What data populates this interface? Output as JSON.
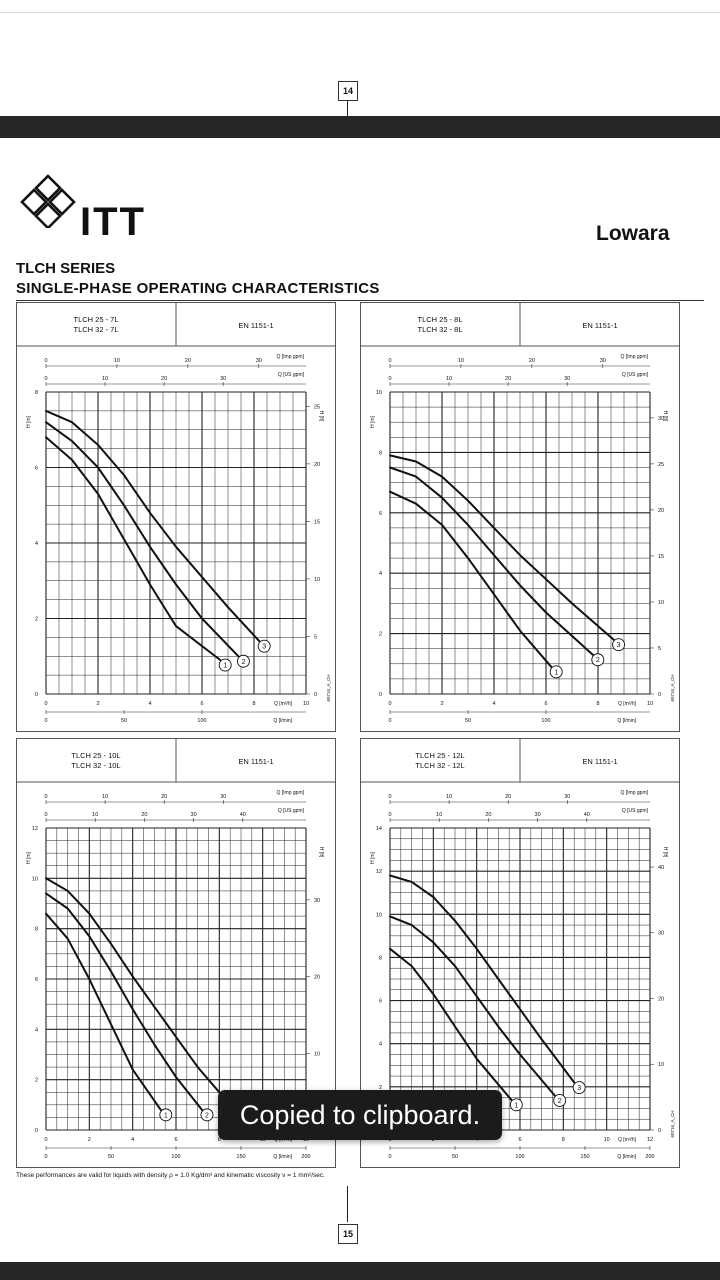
{
  "document": {
    "page_top": "14",
    "page_bottom": "15",
    "brand": "ITT",
    "brand_right": "Lowara",
    "series": "TLCH SERIES",
    "subtitle": "SINGLE-PHASE OPERATING CHARACTERISTICS",
    "footnote": "These performances are valid for liquids with density ρ = 1.0 Kg/dm³ and kinematic viscosity ν = 1 mm²/sec."
  },
  "toast": {
    "text": "Copied to clipboard."
  },
  "chart_data": [
    {
      "type": "line",
      "model_line1": "TLCH 25 - 7L",
      "model_line2": "TLCH 32 - 7L",
      "standard": "EN 1151-1",
      "xlabel": "Q [m³/h]",
      "xlabel2": "Q [l/min]",
      "top_label1": "Q [Imp gpm]",
      "top_label2": "Q [US gpm]",
      "ylabel": "H [m]",
      "ylabel_right": "H [ft]",
      "code": "60716_A_CH",
      "xlim": [
        0,
        10
      ],
      "ylim": [
        0,
        8
      ],
      "x_ticks": [
        "0",
        "2",
        "4",
        "6",
        "8",
        "10"
      ],
      "y_ticks": [
        "0",
        "2",
        "4",
        "6",
        "8"
      ],
      "lmin_ticks": [
        "0",
        "50",
        "100"
      ],
      "lmin_values": [
        0,
        50,
        100
      ],
      "imp_ticks": [
        "0",
        "10",
        "20",
        "30"
      ],
      "imp_values": [
        0,
        10,
        20,
        30
      ],
      "us_ticks": [
        "0",
        "10",
        "20",
        "30"
      ],
      "us_values": [
        0,
        10,
        20,
        30
      ],
      "ft_ticks": [
        "0",
        "5",
        "10",
        "15",
        "20",
        "25"
      ],
      "ft_values": [
        0,
        5,
        10,
        15,
        20,
        25
      ],
      "series": [
        {
          "name": "1",
          "x": [
            0,
            1,
            2,
            3,
            4,
            5,
            6.7
          ],
          "y": [
            6.8,
            6.2,
            5.3,
            4.1,
            2.9,
            1.8,
            0.9
          ]
        },
        {
          "name": "2",
          "x": [
            0,
            1,
            2,
            3,
            4,
            5,
            6,
            7.4
          ],
          "y": [
            7.2,
            6.7,
            6.0,
            5.0,
            3.9,
            2.9,
            2.0,
            1.0
          ]
        },
        {
          "name": "3",
          "x": [
            0,
            1,
            2,
            3,
            4,
            5,
            6,
            7,
            8.2
          ],
          "y": [
            7.5,
            7.2,
            6.6,
            5.8,
            4.8,
            3.9,
            3.1,
            2.3,
            1.4
          ]
        }
      ]
    },
    {
      "type": "line",
      "model_line1": "TLCH 25 - 8L",
      "model_line2": "TLCH 32 - 8L",
      "standard": "EN 1151-1",
      "xlabel": "Q [m³/h]",
      "xlabel2": "Q [l/min]",
      "top_label1": "Q [Imp gpm]",
      "top_label2": "Q [US gpm]",
      "ylabel": "H [m]",
      "ylabel_right": "H [ft]",
      "code": "60716_A_CH",
      "xlim": [
        0,
        10
      ],
      "ylim": [
        0,
        10
      ],
      "x_ticks": [
        "0",
        "2",
        "4",
        "6",
        "8",
        "10"
      ],
      "y_ticks": [
        "0",
        "2",
        "4",
        "6",
        "8",
        "10"
      ],
      "lmin_ticks": [
        "0",
        "50",
        "100"
      ],
      "lmin_values": [
        0,
        50,
        100
      ],
      "imp_ticks": [
        "0",
        "10",
        "20",
        "30"
      ],
      "imp_values": [
        0,
        10,
        20,
        30
      ],
      "us_ticks": [
        "0",
        "10",
        "20",
        "30"
      ],
      "us_values": [
        0,
        10,
        20,
        30
      ],
      "ft_ticks": [
        "0",
        "5",
        "10",
        "15",
        "20",
        "25",
        "30"
      ],
      "ft_values": [
        0,
        5,
        10,
        15,
        20,
        25,
        30
      ],
      "series": [
        {
          "name": "1",
          "x": [
            0,
            1,
            2,
            3,
            4,
            5,
            6.2
          ],
          "y": [
            6.7,
            6.3,
            5.6,
            4.5,
            3.3,
            2.1,
            0.9
          ]
        },
        {
          "name": "2",
          "x": [
            0,
            1,
            2,
            3,
            4,
            5,
            6,
            7.8
          ],
          "y": [
            7.5,
            7.2,
            6.5,
            5.6,
            4.6,
            3.6,
            2.7,
            1.3
          ]
        },
        {
          "name": "3",
          "x": [
            0,
            1,
            2,
            3,
            4,
            5,
            6,
            7,
            8.6
          ],
          "y": [
            7.9,
            7.7,
            7.2,
            6.4,
            5.5,
            4.6,
            3.8,
            3.0,
            1.8
          ]
        }
      ]
    },
    {
      "type": "line",
      "model_line1": "TLCH 25 - 10L",
      "model_line2": "TLCH 32 - 10L",
      "standard": "EN 1151-1",
      "xlabel": "Q [m³/h]",
      "xlabel2": "Q [l/min]",
      "top_label1": "Q [Imp gpm]",
      "top_label2": "Q [US gpm]",
      "ylabel": "H [m]",
      "ylabel_right": "H [ft]",
      "code": "60716_A_CH",
      "xlim": [
        0,
        12
      ],
      "ylim": [
        0,
        12
      ],
      "x_ticks": [
        "0",
        "2",
        "4",
        "6",
        "8",
        "10",
        "12"
      ],
      "y_ticks": [
        "0",
        "2",
        "4",
        "6",
        "8",
        "10",
        "12"
      ],
      "lmin_ticks": [
        "0",
        "50",
        "100",
        "150",
        "200"
      ],
      "lmin_values": [
        0,
        50,
        100,
        150,
        200
      ],
      "imp_ticks": [
        "0",
        "10",
        "20",
        "30"
      ],
      "imp_values": [
        0,
        10,
        20,
        30
      ],
      "us_ticks": [
        "0",
        "10",
        "20",
        "30",
        "40"
      ],
      "us_values": [
        0,
        10,
        20,
        30,
        40
      ],
      "ft_ticks": [
        "0",
        "10",
        "20",
        "30"
      ],
      "ft_values": [
        0,
        10,
        20,
        30
      ],
      "series": [
        {
          "name": "1",
          "x": [
            0,
            1,
            2,
            3,
            4,
            5.3
          ],
          "y": [
            8.6,
            7.6,
            6.0,
            4.2,
            2.4,
            0.8
          ]
        },
        {
          "name": "2",
          "x": [
            0,
            1,
            2,
            3,
            4,
            5,
            6,
            7.2
          ],
          "y": [
            9.4,
            8.8,
            7.7,
            6.3,
            4.8,
            3.4,
            2.1,
            0.8
          ]
        },
        {
          "name": "3",
          "x": [
            0,
            1,
            2,
            3,
            4,
            5,
            6,
            7,
            8.3
          ],
          "y": [
            10.0,
            9.5,
            8.6,
            7.4,
            6.1,
            4.9,
            3.7,
            2.5,
            1.2
          ]
        }
      ]
    },
    {
      "type": "line",
      "model_line1": "TLCH 25 - 12L",
      "model_line2": "TLCH 32 - 12L",
      "standard": "EN 1151-1",
      "xlabel": "Q [m³/h]",
      "xlabel2": "Q [l/min]",
      "top_label1": "Q [Imp gpm]",
      "top_label2": "Q [US gpm]",
      "ylabel": "H [m]",
      "ylabel_right": "H [ft]",
      "code": "60716_A_CH",
      "xlim": [
        0,
        12
      ],
      "ylim": [
        0,
        14
      ],
      "x_ticks": [
        "0",
        "2",
        "4",
        "6",
        "8",
        "10",
        "12"
      ],
      "y_ticks": [
        "0",
        "2",
        "4",
        "6",
        "8",
        "10",
        "12",
        "14"
      ],
      "lmin_ticks": [
        "0",
        "50",
        "100",
        "150",
        "200"
      ],
      "lmin_values": [
        0,
        50,
        100,
        150,
        200
      ],
      "imp_ticks": [
        "0",
        "10",
        "20",
        "30"
      ],
      "imp_values": [
        0,
        10,
        20,
        30
      ],
      "us_ticks": [
        "0",
        "10",
        "20",
        "30",
        "40"
      ],
      "us_values": [
        0,
        10,
        20,
        30,
        40
      ],
      "ft_ticks": [
        "0",
        "10",
        "20",
        "30",
        "40"
      ],
      "ft_values": [
        0,
        10,
        20,
        30,
        40
      ],
      "series": [
        {
          "name": "1",
          "x": [
            0,
            1,
            2,
            3,
            4,
            5.6
          ],
          "y": [
            8.4,
            7.6,
            6.3,
            4.8,
            3.3,
            1.4
          ]
        },
        {
          "name": "2",
          "x": [
            0,
            1,
            2,
            3,
            4,
            5,
            6,
            7.6
          ],
          "y": [
            9.9,
            9.5,
            8.7,
            7.6,
            6.2,
            4.8,
            3.5,
            1.6
          ]
        },
        {
          "name": "3",
          "x": [
            0,
            1,
            2,
            3,
            4,
            5,
            6,
            7,
            8.5
          ],
          "y": [
            11.8,
            11.5,
            10.8,
            9.7,
            8.4,
            7.0,
            5.6,
            4.2,
            2.2
          ]
        }
      ]
    }
  ]
}
